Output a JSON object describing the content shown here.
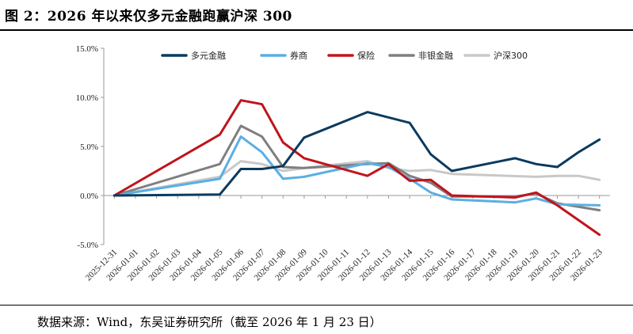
{
  "figure": {
    "title": "图 2：2026 年以来仅多元金融跑赢沪深 300",
    "source": "数据来源：Wind，东吴证券研究所（截至 2026 年 1 月 23 日）"
  },
  "chart_data": {
    "type": "line",
    "title": "",
    "xlabel": "",
    "ylabel": "",
    "ylim": [
      -5,
      15
    ],
    "y_ticks": [
      "15.0%",
      "10.0%",
      "5.0%",
      "0.0%",
      "-5.0%"
    ],
    "y_tick_values": [
      15,
      10,
      5,
      0,
      -5
    ],
    "grid": false,
    "legend_position": "top",
    "x": [
      "2025-12-31",
      "2026-01-01",
      "2026-01-02",
      "2026-01-03",
      "2026-01-04",
      "2026-01-05",
      "2026-01-06",
      "2026-01-07",
      "2026-01-08",
      "2026-01-09",
      "2026-01-10",
      "2026-01-11",
      "2026-01-12",
      "2026-01-13",
      "2026-01-14",
      "2026-01-15",
      "2026-01-16",
      "2026-01-17",
      "2026-01-18",
      "2026-01-19",
      "2026-01-20",
      "2026-01-21",
      "2026-01-22",
      "2026-01-23"
    ],
    "series": [
      {
        "name": "多元金融",
        "color": "#0b3a5e",
        "points": [
          [
            0,
            0
          ],
          [
            5,
            0.1
          ],
          [
            6,
            2.7
          ],
          [
            7,
            2.7
          ],
          [
            8,
            3.0
          ],
          [
            9,
            5.9
          ],
          [
            12,
            8.5
          ],
          [
            14,
            7.4
          ],
          [
            15,
            4.2
          ],
          [
            16,
            2.5
          ],
          [
            19,
            3.8
          ],
          [
            20,
            3.2
          ],
          [
            21,
            2.9
          ],
          [
            22,
            4.4
          ],
          [
            23,
            5.7
          ]
        ]
      },
      {
        "name": "券商",
        "color": "#5aafe3",
        "points": [
          [
            0,
            0
          ],
          [
            5,
            1.7
          ],
          [
            6,
            6.0
          ],
          [
            7,
            4.4
          ],
          [
            8,
            1.7
          ],
          [
            9,
            1.9
          ],
          [
            12,
            3.3
          ],
          [
            13,
            2.9
          ],
          [
            14,
            1.7
          ],
          [
            15,
            0.3
          ],
          [
            16,
            -0.4
          ],
          [
            19,
            -0.7
          ],
          [
            20,
            -0.3
          ],
          [
            21,
            -0.9
          ],
          [
            23,
            -1.0
          ]
        ]
      },
      {
        "name": "保险",
        "color": "#c0141c",
        "points": [
          [
            0,
            0
          ],
          [
            5,
            6.2
          ],
          [
            6,
            9.7
          ],
          [
            7,
            9.3
          ],
          [
            8,
            5.4
          ],
          [
            9,
            3.8
          ],
          [
            12,
            2.0
          ],
          [
            13,
            3.2
          ],
          [
            14,
            1.5
          ],
          [
            15,
            1.6
          ],
          [
            16,
            0.0
          ],
          [
            19,
            -0.2
          ],
          [
            20,
            0.3
          ],
          [
            21,
            -1.0
          ],
          [
            23,
            -4.0
          ]
        ]
      },
      {
        "name": "非银金融",
        "color": "#7f7f7f",
        "points": [
          [
            0,
            0
          ],
          [
            5,
            3.2
          ],
          [
            6,
            7.1
          ],
          [
            7,
            6.0
          ],
          [
            8,
            2.9
          ],
          [
            9,
            2.8
          ],
          [
            12,
            3.2
          ],
          [
            13,
            3.3
          ],
          [
            14,
            2.0
          ],
          [
            15,
            1.3
          ],
          [
            16,
            -0.1
          ],
          [
            19,
            -0.1
          ],
          [
            20,
            0.2
          ],
          [
            21,
            -0.8
          ],
          [
            23,
            -1.5
          ]
        ]
      },
      {
        "name": "沪深300",
        "color": "#c8c8c8",
        "points": [
          [
            0,
            0
          ],
          [
            5,
            1.9
          ],
          [
            6,
            3.5
          ],
          [
            7,
            3.2
          ],
          [
            8,
            2.5
          ],
          [
            9,
            2.8
          ],
          [
            12,
            3.5
          ],
          [
            13,
            2.8
          ],
          [
            14,
            2.5
          ],
          [
            15,
            2.6
          ],
          [
            16,
            2.2
          ],
          [
            20,
            1.9
          ],
          [
            21,
            2.0
          ],
          [
            22,
            2.0
          ],
          [
            23,
            1.6
          ]
        ]
      }
    ]
  }
}
